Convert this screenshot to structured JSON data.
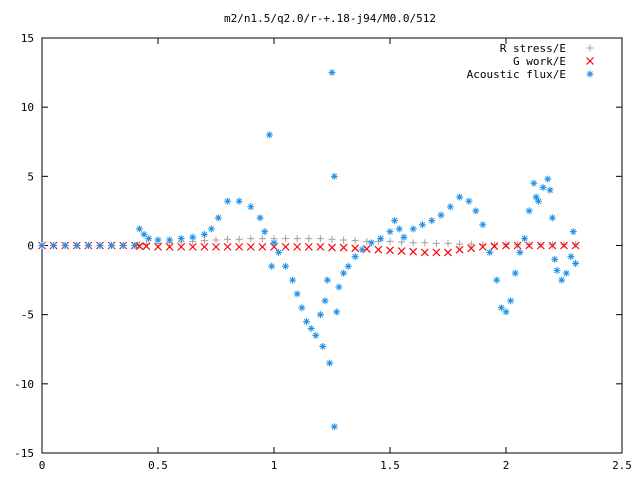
{
  "chart_data": {
    "type": "scatter",
    "title": "m2/n1.5/q2.0/r-+.18-j94/M0.0/512",
    "xlabel": "",
    "ylabel": "",
    "xlim": [
      0,
      2.5
    ],
    "ylim": [
      -15,
      15
    ],
    "x_ticks": [
      "0",
      "0.5",
      "1",
      "1.5",
      "2",
      "2.5"
    ],
    "y_ticks": [
      "15",
      "10",
      "5",
      "0",
      "-5",
      "-10",
      "-15"
    ],
    "grid": false,
    "legend_position": "top-right",
    "series": [
      {
        "name": "R stress/E",
        "marker": "plus",
        "color": "#a0a0a0",
        "x": [
          0.0,
          0.05,
          0.1,
          0.15,
          0.2,
          0.25,
          0.3,
          0.35,
          0.4,
          0.42,
          0.45,
          0.5,
          0.55,
          0.6,
          0.65,
          0.7,
          0.75,
          0.8,
          0.85,
          0.9,
          0.95,
          1.0,
          1.05,
          1.1,
          1.15,
          1.2,
          1.25,
          1.3,
          1.35,
          1.4,
          1.45,
          1.5,
          1.55,
          1.6,
          1.65,
          1.7,
          1.75,
          1.8,
          1.85,
          1.9,
          1.95,
          2.0,
          2.05,
          2.1,
          2.15,
          2.2,
          2.25,
          2.3
        ],
        "y": [
          0.0,
          0.0,
          0.0,
          0.0,
          0.0,
          0.0,
          0.0,
          0.0,
          0.0,
          0.05,
          0.1,
          0.15,
          0.2,
          0.25,
          0.3,
          0.35,
          0.4,
          0.45,
          0.45,
          0.5,
          0.5,
          0.5,
          0.5,
          0.5,
          0.5,
          0.5,
          0.45,
          0.4,
          0.35,
          0.3,
          0.3,
          0.3,
          0.25,
          0.2,
          0.2,
          0.15,
          0.15,
          0.1,
          0.1,
          0.05,
          0.05,
          0.05,
          0.05,
          0.05,
          0.05,
          0.05,
          0.05,
          0.05
        ]
      },
      {
        "name": "G work/E",
        "marker": "cross",
        "color": "#ff0000",
        "x": [
          0.0,
          0.05,
          0.1,
          0.15,
          0.2,
          0.25,
          0.3,
          0.35,
          0.4,
          0.42,
          0.45,
          0.5,
          0.55,
          0.6,
          0.65,
          0.7,
          0.75,
          0.8,
          0.85,
          0.9,
          0.95,
          1.0,
          1.05,
          1.1,
          1.15,
          1.2,
          1.25,
          1.3,
          1.35,
          1.4,
          1.45,
          1.5,
          1.55,
          1.6,
          1.65,
          1.7,
          1.75,
          1.8,
          1.85,
          1.9,
          1.95,
          2.0,
          2.05,
          2.1,
          2.15,
          2.2,
          2.25,
          2.3
        ],
        "y": [
          0.0,
          0.0,
          0.0,
          0.0,
          0.0,
          0.0,
          0.0,
          0.0,
          0.0,
          -0.05,
          -0.05,
          -0.1,
          -0.1,
          -0.1,
          -0.1,
          -0.1,
          -0.1,
          -0.1,
          -0.1,
          -0.1,
          -0.1,
          -0.1,
          -0.1,
          -0.1,
          -0.1,
          -0.1,
          -0.15,
          -0.15,
          -0.2,
          -0.25,
          -0.3,
          -0.35,
          -0.4,
          -0.45,
          -0.5,
          -0.5,
          -0.5,
          -0.3,
          -0.2,
          -0.1,
          -0.05,
          0.0,
          0.0,
          0.0,
          0.0,
          0.0,
          0.0,
          0.0
        ]
      },
      {
        "name": "Acoustic flux/E",
        "marker": "star",
        "color": "#1e90e8",
        "x": [
          0.0,
          0.05,
          0.1,
          0.15,
          0.2,
          0.25,
          0.3,
          0.35,
          0.4,
          0.42,
          0.44,
          0.46,
          0.5,
          0.55,
          0.6,
          0.65,
          0.7,
          0.73,
          0.76,
          0.8,
          0.85,
          0.9,
          0.94,
          0.96,
          0.98,
          0.99,
          1.0,
          1.02,
          1.05,
          1.08,
          1.1,
          1.12,
          1.14,
          1.16,
          1.18,
          1.2,
          1.21,
          1.22,
          1.23,
          1.24,
          1.25,
          1.26,
          1.26,
          1.27,
          1.28,
          1.3,
          1.32,
          1.35,
          1.38,
          1.42,
          1.46,
          1.5,
          1.52,
          1.54,
          1.56,
          1.6,
          1.64,
          1.68,
          1.72,
          1.76,
          1.8,
          1.84,
          1.87,
          1.9,
          1.93,
          1.96,
          1.98,
          2.0,
          2.02,
          2.04,
          2.06,
          2.08,
          2.1,
          2.12,
          2.13,
          2.14,
          2.16,
          2.18,
          2.19,
          2.2,
          2.21,
          2.22,
          2.24,
          2.26,
          2.28,
          2.29,
          2.3
        ],
        "y": [
          0.0,
          0.0,
          0.0,
          0.0,
          0.0,
          0.0,
          0.0,
          0.0,
          0.0,
          1.2,
          0.8,
          0.5,
          0.4,
          0.4,
          0.5,
          0.6,
          0.8,
          1.2,
          2.0,
          3.2,
          3.2,
          2.8,
          2.0,
          1.0,
          8.0,
          -1.5,
          0.2,
          -0.5,
          -1.5,
          -2.5,
          -3.5,
          -4.5,
          -5.5,
          -6.0,
          -6.5,
          -5.0,
          -7.3,
          -4.0,
          -2.5,
          -8.5,
          12.5,
          5.0,
          -13.1,
          -4.8,
          -3.0,
          -2.0,
          -1.5,
          -0.8,
          -0.3,
          0.2,
          0.5,
          1.0,
          1.8,
          1.2,
          0.6,
          1.2,
          1.5,
          1.8,
          2.2,
          2.8,
          3.5,
          3.2,
          2.5,
          1.5,
          -0.5,
          -2.5,
          -4.5,
          -4.8,
          -4.0,
          -2.0,
          -0.5,
          0.5,
          2.5,
          4.5,
          3.5,
          3.2,
          4.2,
          4.8,
          4.0,
          2.0,
          -1.0,
          -1.8,
          -2.5,
          -2.0,
          -0.8,
          1.0,
          -1.3
        ]
      }
    ]
  }
}
